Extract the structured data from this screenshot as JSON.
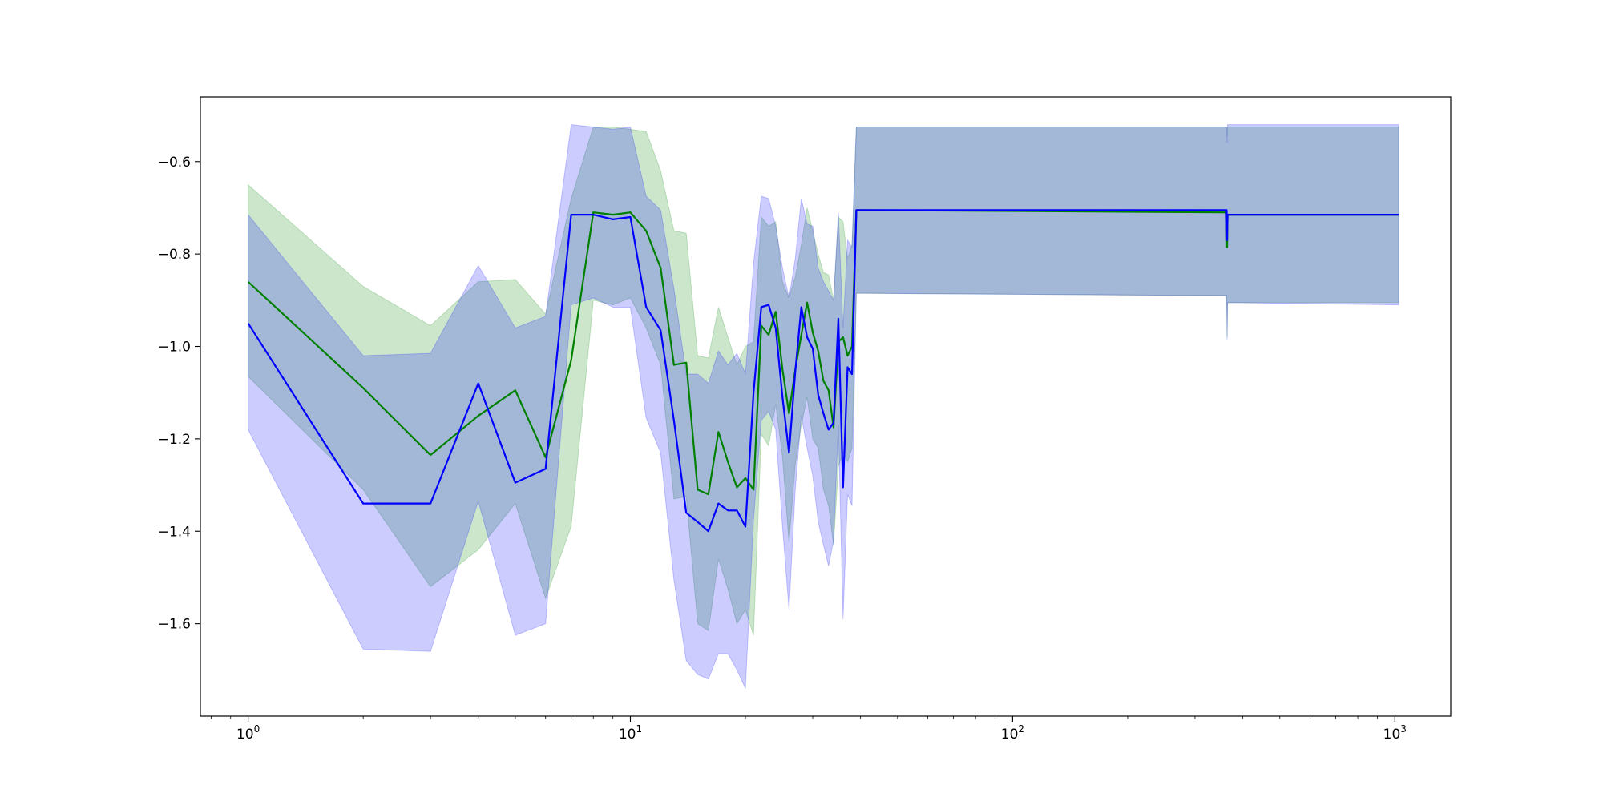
{
  "chart_data": {
    "type": "line",
    "title": "",
    "xlabel": "",
    "ylabel": "",
    "xscale": "log",
    "xlim": [
      0.75,
      1400
    ],
    "ylim": [
      -1.8,
      -0.46
    ],
    "grid": false,
    "legend": "none",
    "x_ticks": [
      {
        "value": 1,
        "base": "10",
        "exp": "0"
      },
      {
        "value": 10,
        "base": "10",
        "exp": "1"
      },
      {
        "value": 100,
        "base": "10",
        "exp": "2"
      },
      {
        "value": 1000,
        "base": "10",
        "exp": "3"
      }
    ],
    "y_ticks": [
      {
        "value": -0.6,
        "label": "−0.6"
      },
      {
        "value": -0.8,
        "label": "−0.8"
      },
      {
        "value": -1.0,
        "label": "−1.0"
      },
      {
        "value": -1.2,
        "label": "−1.2"
      },
      {
        "value": -1.4,
        "label": "−1.4"
      },
      {
        "value": -1.6,
        "label": "−1.6"
      }
    ],
    "series": [
      {
        "color": "#008000",
        "band_color": "#008000",
        "band_opacity": 0.2,
        "x": [
          1,
          2,
          3,
          4,
          5,
          6,
          7,
          8,
          9,
          10,
          11,
          12,
          13,
          14,
          15,
          16,
          17,
          18,
          19,
          20,
          21,
          22,
          23,
          24,
          25,
          26,
          27,
          28,
          29,
          30,
          31,
          32,
          33,
          34,
          35,
          36,
          37,
          38,
          39,
          40,
          363,
          364,
          365,
          1024
        ],
        "y": [
          -0.86,
          -1.09,
          -1.235,
          -1.15,
          -1.095,
          -1.24,
          -1.03,
          -0.71,
          -0.715,
          -0.71,
          -0.75,
          -0.83,
          -1.04,
          -1.035,
          -1.31,
          -1.32,
          -1.185,
          -1.25,
          -1.305,
          -1.285,
          -1.31,
          -0.955,
          -0.975,
          -0.925,
          -1.05,
          -1.145,
          -1.05,
          -0.975,
          -0.905,
          -0.97,
          -1.01,
          -1.075,
          -1.095,
          -1.175,
          -0.99,
          -0.98,
          -1.02,
          -1.0,
          -0.705,
          -0.705,
          -0.71,
          -0.785,
          -0.715,
          -0.715
        ],
        "upper": [
          -0.65,
          -0.87,
          -0.955,
          -0.86,
          -0.855,
          -0.93,
          -0.68,
          -0.525,
          -0.525,
          -0.53,
          -0.535,
          -0.62,
          -0.75,
          -0.755,
          -1.02,
          -1.025,
          -0.915,
          -0.98,
          -1.04,
          -1.0,
          -0.99,
          -0.72,
          -0.74,
          -0.73,
          -0.86,
          -0.895,
          -0.85,
          -0.78,
          -0.7,
          -0.75,
          -0.8,
          -0.84,
          -0.845,
          -0.9,
          -0.72,
          -0.73,
          -0.81,
          -0.78,
          -0.525,
          -0.525,
          -0.525,
          -0.545,
          -0.525,
          -0.525
        ],
        "lower": [
          -1.065,
          -1.31,
          -1.52,
          -1.44,
          -1.34,
          -1.545,
          -1.39,
          -0.9,
          -0.91,
          -0.895,
          -0.96,
          -1.04,
          -1.33,
          -1.325,
          -1.6,
          -1.615,
          -1.46,
          -1.525,
          -1.6,
          -1.57,
          -1.625,
          -1.19,
          -1.215,
          -1.125,
          -1.24,
          -1.425,
          -1.255,
          -1.17,
          -1.11,
          -1.2,
          -1.22,
          -1.31,
          -1.345,
          -1.43,
          -1.26,
          -1.23,
          -1.25,
          -1.22,
          -0.885,
          -0.885,
          -0.89,
          -0.98,
          -0.905,
          -0.905
        ]
      },
      {
        "color": "#0000ff",
        "band_color": "#0000ff",
        "band_opacity": 0.2,
        "x": [
          1,
          2,
          3,
          4,
          5,
          6,
          7,
          8,
          9,
          10,
          11,
          12,
          13,
          14,
          15,
          16,
          17,
          18,
          19,
          20,
          21,
          22,
          23,
          24,
          25,
          26,
          27,
          28,
          29,
          30,
          31,
          32,
          33,
          34,
          35,
          36,
          37,
          38,
          39,
          40,
          363,
          364,
          365,
          1024
        ],
        "y": [
          -0.95,
          -1.34,
          -1.34,
          -1.08,
          -1.295,
          -1.265,
          -0.715,
          -0.715,
          -0.725,
          -0.72,
          -0.915,
          -0.965,
          -1.16,
          -1.36,
          -1.38,
          -1.4,
          -1.34,
          -1.355,
          -1.355,
          -1.39,
          -1.1,
          -0.915,
          -0.91,
          -0.96,
          -1.11,
          -1.23,
          -1.055,
          -0.915,
          -0.98,
          -1.005,
          -1.105,
          -1.145,
          -1.18,
          -1.165,
          -0.94,
          -1.305,
          -1.045,
          -1.06,
          -0.705,
          -0.705,
          -0.705,
          -0.77,
          -0.715,
          -0.715
        ],
        "upper": [
          -0.715,
          -1.02,
          -1.015,
          -0.825,
          -0.96,
          -0.935,
          -0.52,
          -0.525,
          -0.53,
          -0.525,
          -0.675,
          -0.705,
          -0.875,
          -1.06,
          -1.06,
          -1.08,
          -1.01,
          -1.04,
          -1.015,
          -1.06,
          -0.82,
          -0.675,
          -0.68,
          -0.74,
          -0.83,
          -0.895,
          -0.81,
          -0.68,
          -0.735,
          -0.74,
          -0.83,
          -0.86,
          -0.88,
          -0.9,
          -0.71,
          -0.96,
          -0.77,
          -0.785,
          -0.525,
          -0.525,
          -0.525,
          -0.56,
          -0.52,
          -0.52
        ],
        "lower": [
          -1.18,
          -1.655,
          -1.66,
          -1.335,
          -1.625,
          -1.6,
          -0.91,
          -0.895,
          -0.915,
          -0.915,
          -1.155,
          -1.23,
          -1.505,
          -1.68,
          -1.71,
          -1.72,
          -1.665,
          -1.665,
          -1.7,
          -1.74,
          -1.375,
          -1.16,
          -1.14,
          -1.18,
          -1.39,
          -1.57,
          -1.31,
          -1.15,
          -1.22,
          -1.28,
          -1.38,
          -1.43,
          -1.475,
          -1.42,
          -1.17,
          -1.59,
          -1.32,
          -1.345,
          -0.885,
          -0.885,
          -0.89,
          -0.985,
          -0.905,
          -0.91
        ]
      }
    ]
  }
}
